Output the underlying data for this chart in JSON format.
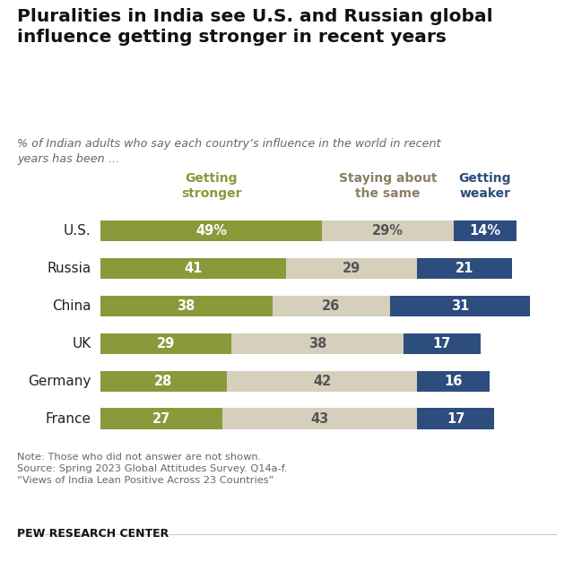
{
  "title": "Pluralities in India see U.S. and Russian global\ninfluence getting stronger in recent years",
  "subtitle": "% of Indian adults who say each country’s influence in the world in recent\nyears has been …",
  "categories": [
    "U.S.",
    "Russia",
    "China",
    "UK",
    "Germany",
    "France"
  ],
  "getting_stronger": [
    49,
    41,
    38,
    29,
    28,
    27
  ],
  "staying_same": [
    29,
    29,
    26,
    38,
    42,
    43
  ],
  "getting_weaker": [
    14,
    21,
    31,
    17,
    16,
    17
  ],
  "color_stronger": "#8a9a3a",
  "color_same": "#d5cfbc",
  "color_weaker": "#2d4d7e",
  "color_same_legend": "#8a8060",
  "legend_stronger": "Getting\nstronger",
  "legend_same": "Staying about\nthe same",
  "legend_weaker": "Getting\nweaker",
  "note": "Note: Those who did not answer are not shown.\nSource: Spring 2023 Global Attitudes Survey. Q14a-f.\n“Views of India Lean Positive Across 23 Countries”",
  "footer": "PEW RESEARCH CENTER",
  "bar_height": 0.55,
  "bg_color": "#ffffff",
  "text_color_bars_dark": "#555555",
  "text_color_white": "#ffffff"
}
